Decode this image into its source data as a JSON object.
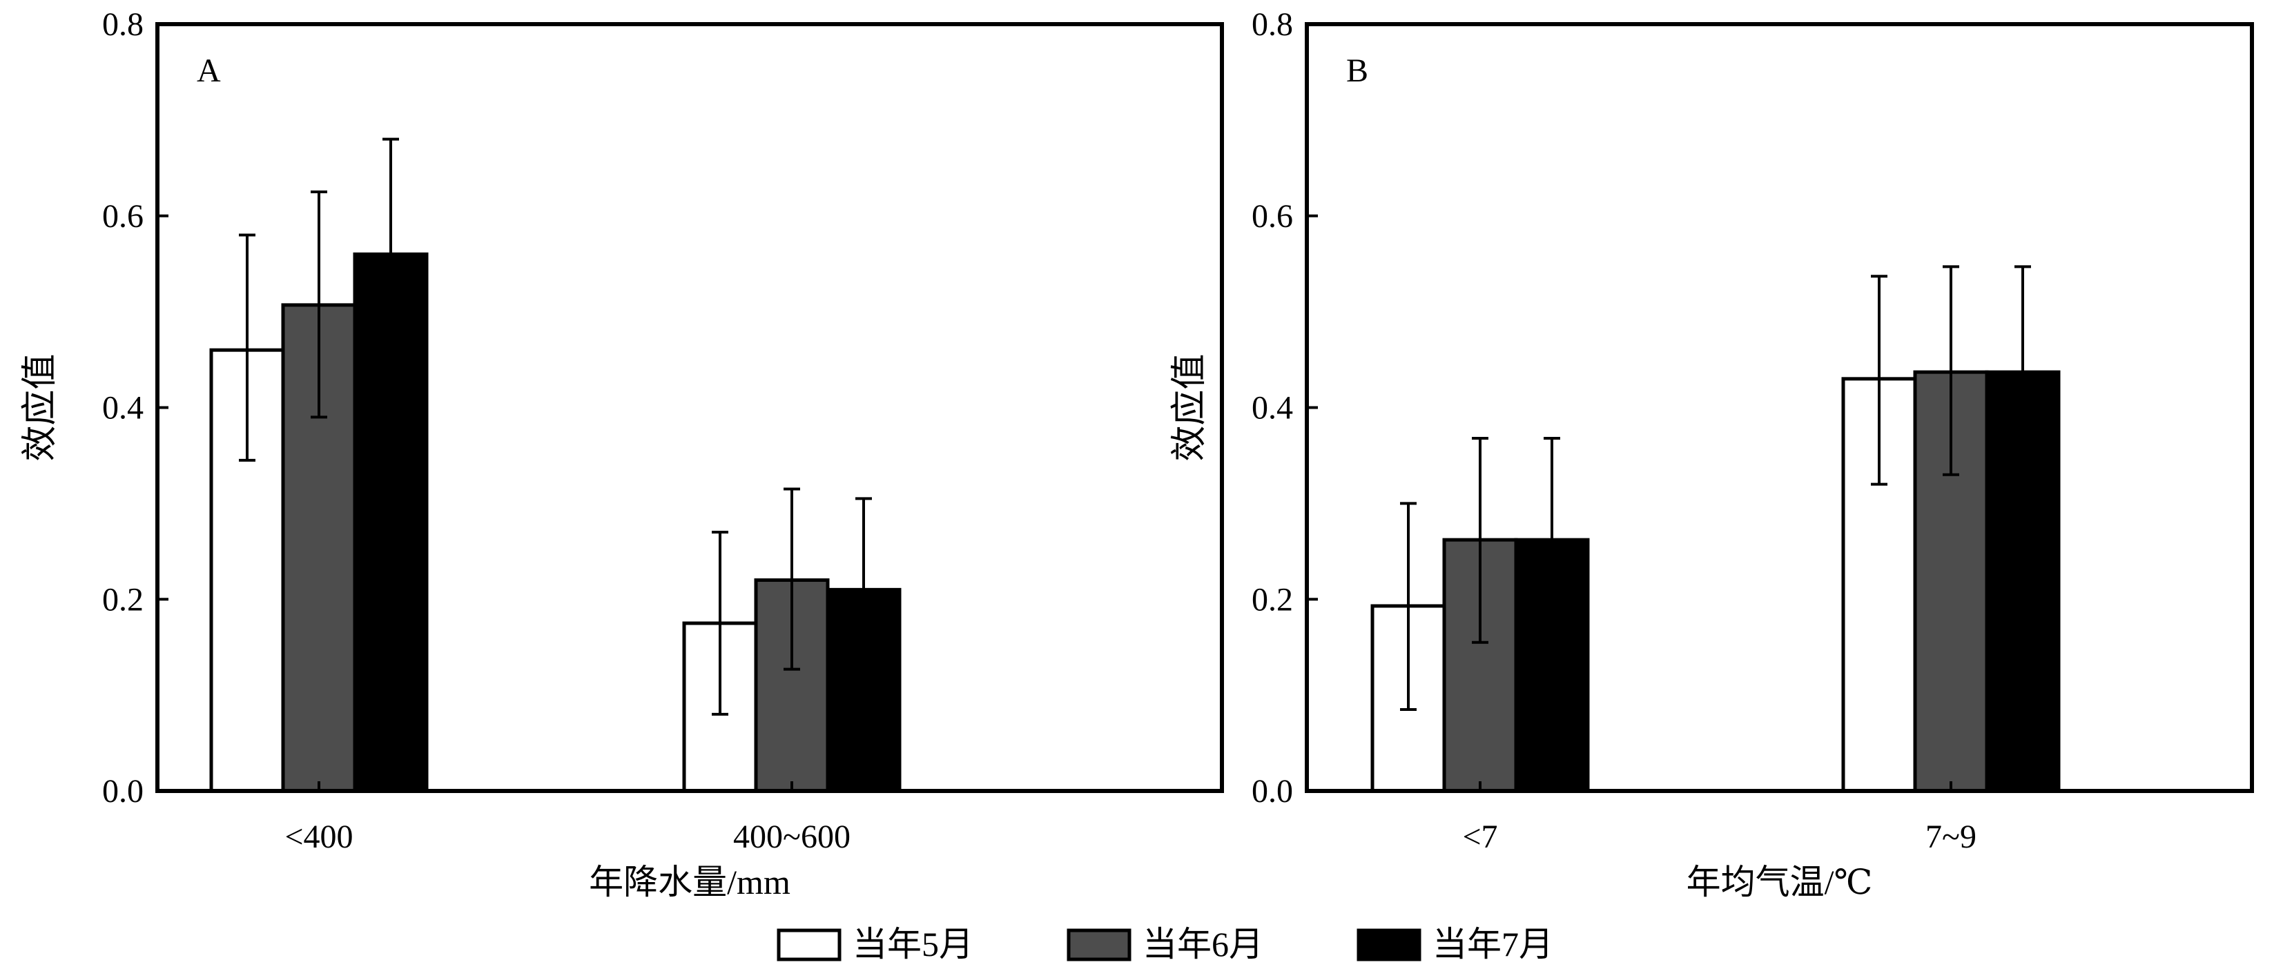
{
  "chart_data": [
    {
      "panel_label": "A",
      "type": "bar",
      "categories": [
        "<400",
        "400~600"
      ],
      "xlabel": "年降水量/mm",
      "ylabel": "效应值",
      "ylim": [
        0,
        0.8
      ],
      "yticks": [
        "0.0",
        "0.2",
        "0.4",
        "0.6",
        "0.8"
      ],
      "series": [
        {
          "name": "当年5月",
          "values": [
            0.46,
            0.175
          ],
          "err_low": [
            0.345,
            0.08
          ],
          "err_high": [
            0.58,
            0.27
          ]
        },
        {
          "name": "当年6月",
          "values": [
            0.507,
            0.22
          ],
          "err_low": [
            0.39,
            0.127
          ],
          "err_high": [
            0.625,
            0.315
          ]
        },
        {
          "name": "当年7月",
          "values": [
            0.56,
            0.21
          ],
          "err_low": [
            0.56,
            0.21
          ],
          "err_high": [
            0.68,
            0.305
          ]
        }
      ]
    },
    {
      "panel_label": "B",
      "type": "bar",
      "categories": [
        "<7",
        "7~9"
      ],
      "xlabel": "年均气温/℃",
      "ylabel": "效应值",
      "ylim": [
        0,
        0.8
      ],
      "yticks": [
        "0.0",
        "0.2",
        "0.4",
        "0.6",
        "0.8"
      ],
      "series": [
        {
          "name": "当年5月",
          "values": [
            0.193,
            0.43
          ],
          "err_low": [
            0.085,
            0.32
          ],
          "err_high": [
            0.3,
            0.537
          ]
        },
        {
          "name": "当年6月",
          "values": [
            0.262,
            0.437
          ],
          "err_low": [
            0.155,
            0.33
          ],
          "err_high": [
            0.368,
            0.547
          ]
        },
        {
          "name": "当年7月",
          "values": [
            0.262,
            0.437
          ],
          "err_low": [
            0.262,
            0.437
          ],
          "err_high": [
            0.368,
            0.547
          ]
        }
      ]
    }
  ],
  "legend": {
    "position": "bottom-center",
    "items": [
      {
        "label": "当年5月",
        "color": "#ffffff"
      },
      {
        "label": "当年6月",
        "color": "#4d4d4d"
      },
      {
        "label": "当年7月",
        "color": "#000000"
      }
    ]
  },
  "series_colors": [
    "#ffffff",
    "#4d4d4d",
    "#000000"
  ]
}
